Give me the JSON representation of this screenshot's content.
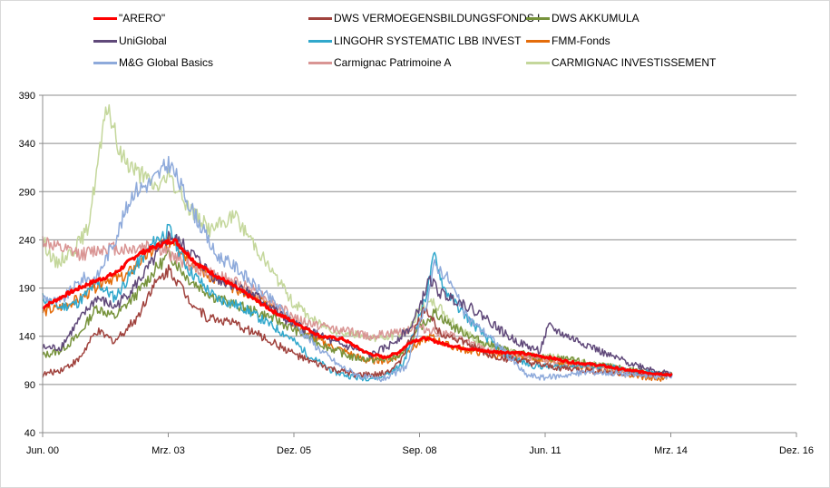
{
  "chart_data": {
    "type": "line",
    "title": "",
    "xlabel": "",
    "ylabel": "",
    "ylim": [
      40,
      390
    ],
    "yticks": [
      40,
      90,
      140,
      190,
      240,
      290,
      340,
      390
    ],
    "x_range": [
      2000.42,
      2016.92
    ],
    "xticks": [
      {
        "label": "Jun. 00",
        "value": 2000.42
      },
      {
        "label": "Mrz. 03",
        "value": 2003.17
      },
      {
        "label": "Dez. 05",
        "value": 2005.92
      },
      {
        "label": "Sep. 08",
        "value": 2008.67
      },
      {
        "label": "Jun. 11",
        "value": 2011.42
      },
      {
        "label": "Mrz. 14",
        "value": 2014.17
      },
      {
        "label": "Dez. 16",
        "value": 2016.92
      }
    ],
    "grid": true,
    "legend_position": "top",
    "series": [
      {
        "name": "\"ARERO\"",
        "color": "#ff0000",
        "width": 3,
        "points": [
          [
            2000.42,
            170
          ],
          [
            2001.0,
            185
          ],
          [
            2001.5,
            196
          ],
          [
            2002.0,
            205
          ],
          [
            2002.5,
            225
          ],
          [
            2003.0,
            235
          ],
          [
            2003.3,
            240
          ],
          [
            2003.8,
            215
          ],
          [
            2004.5,
            195
          ],
          [
            2005.5,
            165
          ],
          [
            2006.0,
            153
          ],
          [
            2006.5,
            140
          ],
          [
            2007.0,
            137
          ],
          [
            2007.5,
            123
          ],
          [
            2007.9,
            118
          ],
          [
            2008.2,
            123
          ],
          [
            2008.5,
            135
          ],
          [
            2008.8,
            138
          ],
          [
            2009.2,
            132
          ],
          [
            2009.6,
            128
          ],
          [
            2010.2,
            124
          ],
          [
            2010.8,
            123
          ],
          [
            2011.5,
            118
          ],
          [
            2012.0,
            113
          ],
          [
            2012.6,
            110
          ],
          [
            2013.2,
            105
          ],
          [
            2013.7,
            102
          ],
          [
            2014.2,
            100
          ]
        ]
      },
      {
        "name": "UniGlobal",
        "color": "#60497a",
        "width": 1.5,
        "points": [
          [
            2000.42,
            128
          ],
          [
            2000.8,
            128
          ],
          [
            2001.2,
            155
          ],
          [
            2001.6,
            180
          ],
          [
            2002.0,
            170
          ],
          [
            2002.4,
            190
          ],
          [
            2002.8,
            215
          ],
          [
            2003.2,
            245
          ],
          [
            2003.6,
            230
          ],
          [
            2004.2,
            200
          ],
          [
            2004.8,
            190
          ],
          [
            2005.3,
            175
          ],
          [
            2005.8,
            155
          ],
          [
            2006.3,
            145
          ],
          [
            2006.8,
            133
          ],
          [
            2007.2,
            128
          ],
          [
            2007.6,
            120
          ],
          [
            2008.0,
            130
          ],
          [
            2008.5,
            150
          ],
          [
            2008.9,
            200
          ],
          [
            2009.1,
            185
          ],
          [
            2009.6,
            175
          ],
          [
            2010.1,
            160
          ],
          [
            2010.6,
            140
          ],
          [
            2011.0,
            130
          ],
          [
            2011.3,
            125
          ],
          [
            2011.5,
            150
          ],
          [
            2011.9,
            140
          ],
          [
            2012.4,
            130
          ],
          [
            2012.8,
            120
          ],
          [
            2013.3,
            112
          ],
          [
            2013.8,
            105
          ],
          [
            2014.2,
            100
          ]
        ]
      },
      {
        "name": "M&G Global Basics",
        "color": "#8eaadb",
        "width": 1.5,
        "points": [
          [
            2000.42,
            180
          ],
          [
            2000.8,
            175
          ],
          [
            2001.3,
            200
          ],
          [
            2001.6,
            200
          ],
          [
            2002.0,
            240
          ],
          [
            2002.4,
            290
          ],
          [
            2002.8,
            300
          ],
          [
            2003.2,
            320
          ],
          [
            2003.6,
            280
          ],
          [
            2004.2,
            225
          ],
          [
            2004.7,
            210
          ],
          [
            2005.1,
            190
          ],
          [
            2005.5,
            175
          ],
          [
            2005.9,
            155
          ],
          [
            2006.4,
            130
          ],
          [
            2006.9,
            110
          ],
          [
            2007.4,
            98
          ],
          [
            2007.8,
            95
          ],
          [
            2008.1,
            100
          ],
          [
            2008.4,
            110
          ],
          [
            2008.8,
            170
          ],
          [
            2009.0,
            215
          ],
          [
            2009.3,
            200
          ],
          [
            2009.7,
            160
          ],
          [
            2010.2,
            140
          ],
          [
            2010.6,
            120
          ],
          [
            2011.0,
            100
          ],
          [
            2011.4,
            97
          ],
          [
            2011.9,
            100
          ],
          [
            2012.4,
            103
          ],
          [
            2012.9,
            102
          ],
          [
            2013.4,
            100
          ],
          [
            2013.9,
            98
          ],
          [
            2014.2,
            100
          ]
        ]
      },
      {
        "name": "DWS VERMOEGENSBILDUNGSFONDS  I",
        "color": "#a0423d",
        "width": 1.5,
        "points": [
          [
            2000.42,
            100
          ],
          [
            2000.8,
            105
          ],
          [
            2001.2,
            115
          ],
          [
            2001.6,
            145
          ],
          [
            2002.0,
            135
          ],
          [
            2002.5,
            160
          ],
          [
            2002.8,
            190
          ],
          [
            2003.2,
            210
          ],
          [
            2003.6,
            180
          ],
          [
            2004.0,
            160
          ],
          [
            2004.5,
            155
          ],
          [
            2005.0,
            145
          ],
          [
            2005.6,
            130
          ],
          [
            2006.2,
            115
          ],
          [
            2006.8,
            105
          ],
          [
            2007.3,
            100
          ],
          [
            2007.8,
            100
          ],
          [
            2008.2,
            110
          ],
          [
            2008.5,
            140
          ],
          [
            2008.8,
            170
          ],
          [
            2009.1,
            145
          ],
          [
            2009.6,
            135
          ],
          [
            2010.2,
            120
          ],
          [
            2010.8,
            115
          ],
          [
            2011.5,
            108
          ],
          [
            2012.2,
            105
          ],
          [
            2012.8,
            103
          ],
          [
            2013.5,
            100
          ],
          [
            2014.2,
            100
          ]
        ]
      },
      {
        "name": "LINGOHR SYSTEMATIC  LBB INVEST",
        "color": "#31a8cc",
        "width": 1.5,
        "points": [
          [
            2000.42,
            180
          ],
          [
            2000.8,
            170
          ],
          [
            2001.2,
            175
          ],
          [
            2001.6,
            195
          ],
          [
            2002.0,
            180
          ],
          [
            2002.5,
            215
          ],
          [
            2002.9,
            240
          ],
          [
            2003.2,
            250
          ],
          [
            2003.6,
            210
          ],
          [
            2004.2,
            180
          ],
          [
            2004.8,
            170
          ],
          [
            2005.3,
            155
          ],
          [
            2005.8,
            140
          ],
          [
            2006.3,
            118
          ],
          [
            2006.8,
            103
          ],
          [
            2007.3,
            97
          ],
          [
            2007.8,
            97
          ],
          [
            2008.3,
            110
          ],
          [
            2008.8,
            180
          ],
          [
            2009.0,
            225
          ],
          [
            2009.2,
            190
          ],
          [
            2009.6,
            165
          ],
          [
            2010.1,
            140
          ],
          [
            2010.6,
            120
          ],
          [
            2011.1,
            110
          ],
          [
            2011.6,
            108
          ],
          [
            2012.2,
            110
          ],
          [
            2012.8,
            108
          ],
          [
            2013.4,
            103
          ],
          [
            2014.2,
            100
          ]
        ]
      },
      {
        "name": "Carmignac Patrimoine A",
        "color": "#d99594",
        "width": 1.5,
        "points": [
          [
            2000.42,
            240
          ],
          [
            2000.8,
            230
          ],
          [
            2001.3,
            225
          ],
          [
            2001.8,
            232
          ],
          [
            2002.3,
            230
          ],
          [
            2002.8,
            235
          ],
          [
            2003.2,
            225
          ],
          [
            2003.8,
            210
          ],
          [
            2004.4,
            200
          ],
          [
            2005.0,
            190
          ],
          [
            2005.6,
            170
          ],
          [
            2006.1,
            155
          ],
          [
            2006.6,
            150
          ],
          [
            2007.1,
            145
          ],
          [
            2007.6,
            140
          ],
          [
            2008.1,
            143
          ],
          [
            2008.6,
            150
          ],
          [
            2009.0,
            145
          ],
          [
            2009.5,
            138
          ],
          [
            2010.0,
            128
          ],
          [
            2010.6,
            122
          ],
          [
            2011.2,
            118
          ],
          [
            2011.8,
            113
          ],
          [
            2012.4,
            108
          ],
          [
            2013.0,
            104
          ],
          [
            2013.6,
            101
          ],
          [
            2014.2,
            100
          ]
        ]
      },
      {
        "name": "DWS AKKUMULA",
        "color": "#77933c",
        "width": 1.5,
        "points": [
          [
            2000.42,
            120
          ],
          [
            2000.8,
            125
          ],
          [
            2001.2,
            140
          ],
          [
            2001.6,
            170
          ],
          [
            2002.0,
            160
          ],
          [
            2002.5,
            185
          ],
          [
            2002.9,
            210
          ],
          [
            2003.2,
            225
          ],
          [
            2003.6,
            200
          ],
          [
            2004.2,
            180
          ],
          [
            2004.8,
            170
          ],
          [
            2005.4,
            160
          ],
          [
            2006.0,
            145
          ],
          [
            2006.6,
            130
          ],
          [
            2007.2,
            118
          ],
          [
            2007.8,
            115
          ],
          [
            2008.3,
            120
          ],
          [
            2008.7,
            150
          ],
          [
            2009.0,
            165
          ],
          [
            2009.4,
            150
          ],
          [
            2010.0,
            135
          ],
          [
            2010.6,
            125
          ],
          [
            2011.3,
            118
          ],
          [
            2012.0,
            115
          ],
          [
            2012.6,
            110
          ],
          [
            2013.3,
            105
          ],
          [
            2014.2,
            100
          ]
        ]
      },
      {
        "name": "FMM-Fonds",
        "color": "#e46c0a",
        "width": 1.5,
        "points": [
          [
            2000.42,
            165
          ],
          [
            2000.8,
            170
          ],
          [
            2001.3,
            180
          ],
          [
            2001.8,
            200
          ],
          [
            2002.2,
            200
          ],
          [
            2002.6,
            220
          ],
          [
            2003.0,
            235
          ],
          [
            2003.3,
            240
          ],
          [
            2003.7,
            215
          ],
          [
            2004.3,
            195
          ],
          [
            2004.9,
            185
          ],
          [
            2005.5,
            170
          ],
          [
            2006.0,
            150
          ],
          [
            2006.5,
            135
          ],
          [
            2007.0,
            125
          ],
          [
            2007.5,
            115
          ],
          [
            2008.0,
            115
          ],
          [
            2008.5,
            128
          ],
          [
            2008.9,
            140
          ],
          [
            2009.3,
            130
          ],
          [
            2009.8,
            125
          ],
          [
            2010.4,
            120
          ],
          [
            2011.0,
            118
          ],
          [
            2011.7,
            112
          ],
          [
            2012.3,
            108
          ],
          [
            2012.9,
            103
          ],
          [
            2013.5,
            98
          ],
          [
            2013.9,
            95
          ],
          [
            2014.2,
            100
          ]
        ]
      },
      {
        "name": "CARMIGNAC INVESTISSEMENT",
        "color": "#c4d79b",
        "width": 1.5,
        "points": [
          [
            2000.42,
            240
          ],
          [
            2000.7,
            215
          ],
          [
            2001.1,
            230
          ],
          [
            2001.4,
            250
          ],
          [
            2001.7,
            340
          ],
          [
            2001.85,
            380
          ],
          [
            2002.1,
            330
          ],
          [
            2002.5,
            310
          ],
          [
            2002.9,
            295
          ],
          [
            2003.2,
            305
          ],
          [
            2003.6,
            275
          ],
          [
            2004.1,
            250
          ],
          [
            2004.6,
            265
          ],
          [
            2005.0,
            240
          ],
          [
            2005.4,
            210
          ],
          [
            2005.9,
            175
          ],
          [
            2006.4,
            155
          ],
          [
            2006.9,
            145
          ],
          [
            2007.4,
            140
          ],
          [
            2007.9,
            138
          ],
          [
            2008.4,
            145
          ],
          [
            2008.7,
            170
          ],
          [
            2009.0,
            175
          ],
          [
            2009.4,
            155
          ],
          [
            2009.9,
            135
          ],
          [
            2010.5,
            125
          ],
          [
            2011.1,
            120
          ],
          [
            2011.7,
            118
          ],
          [
            2012.3,
            112
          ],
          [
            2012.9,
            108
          ],
          [
            2013.5,
            103
          ],
          [
            2014.2,
            100
          ]
        ]
      }
    ]
  },
  "legend": {
    "items": [
      {
        "label": "\"ARERO\"",
        "color": "#ff0000"
      },
      {
        "label": "DWS VERMOEGENSBILDUNGSFONDS  I",
        "color": "#a0423d"
      },
      {
        "label": "DWS AKKUMULA",
        "color": "#77933c"
      },
      {
        "label": "UniGlobal",
        "color": "#60497a"
      },
      {
        "label": "LINGOHR SYSTEMATIC  LBB INVEST",
        "color": "#31a8cc"
      },
      {
        "label": "FMM-Fonds",
        "color": "#e46c0a"
      },
      {
        "label": "M&G Global Basics",
        "color": "#8eaadb"
      },
      {
        "label": "Carmignac Patrimoine A",
        "color": "#d99594"
      },
      {
        "label": "CARMIGNAC INVESTISSEMENT",
        "color": "#c4d79b"
      }
    ]
  }
}
